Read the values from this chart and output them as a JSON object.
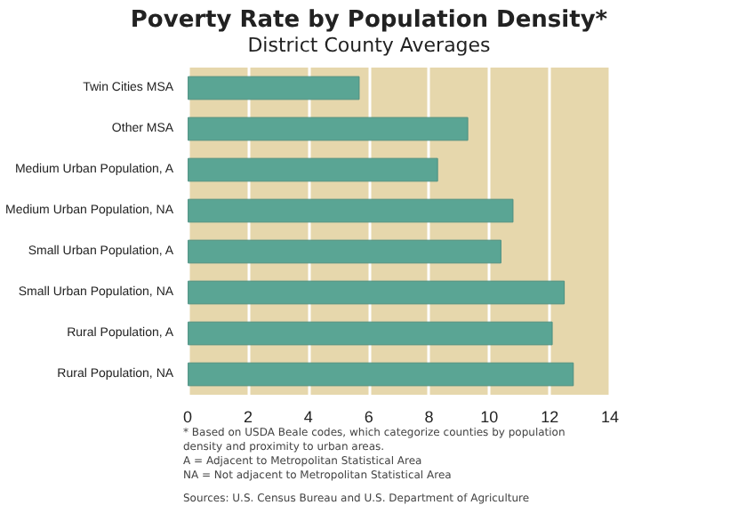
{
  "chart_data": {
    "type": "bar",
    "orientation": "horizontal",
    "title": "Poverty Rate by Population Density*",
    "subtitle": "District County Averages",
    "categories": [
      "Twin Cities MSA",
      "Other MSA",
      "Medium Urban Population, A",
      "Medium Urban Population, NA",
      "Small Urban Population, A",
      "Small Urban Population, NA",
      "Rural Population, A",
      "Rural Population, NA"
    ],
    "values": [
      5.7,
      9.3,
      8.3,
      10.8,
      10.4,
      12.5,
      12.1,
      12.8
    ],
    "color": "#5aa594",
    "xlim": [
      0,
      14
    ],
    "xticks": [
      0,
      2,
      4,
      6,
      8,
      10,
      12,
      14
    ],
    "grid": "x",
    "annotations": [
      "* Based on USDA Beale codes, which categorize counties by population density and proximity to urban areas.",
      "A = Adjacent to Metropolitan Statistical Area",
      "NA = Not adjacent to Metropolitan Statistical Area",
      "Sources: U.S. Census Bureau and U.S. Department of Agriculture"
    ]
  }
}
